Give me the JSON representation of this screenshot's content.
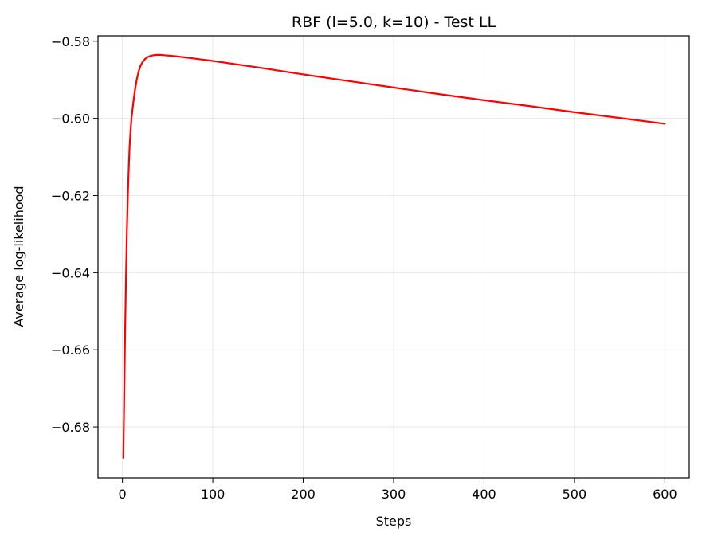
{
  "chart_data": {
    "type": "line",
    "title": "RBF (l=5.0, k=10) - Test LL",
    "xlabel": "Steps",
    "ylabel": "Average log-likelihood",
    "xlim": [
      -27,
      627
    ],
    "ylim": [
      -0.6932,
      -0.5786
    ],
    "xticks": [
      0,
      100,
      200,
      300,
      400,
      500,
      600
    ],
    "xtick_labels": [
      "0",
      "100",
      "200",
      "300",
      "400",
      "500",
      "600"
    ],
    "yticks": [
      -0.68,
      -0.66,
      -0.64,
      -0.62,
      -0.6,
      -0.58
    ],
    "ytick_labels": [
      "−0.68",
      "−0.66",
      "−0.64",
      "−0.62",
      "−0.60",
      "−0.58"
    ],
    "grid": true,
    "series": [
      {
        "color": "#ff0000",
        "x": [
          1,
          2,
          3,
          4,
          5,
          6,
          7,
          8,
          10,
          12,
          14,
          16,
          18,
          20,
          22,
          25,
          28,
          31,
          35,
          40,
          45,
          50,
          60,
          70,
          80,
          100,
          150,
          200,
          250,
          300,
          350,
          400,
          450,
          500,
          550,
          600
        ],
        "y": [
          -0.688,
          -0.672,
          -0.655,
          -0.641,
          -0.629,
          -0.62,
          -0.613,
          -0.607,
          -0.6,
          -0.596,
          -0.5925,
          -0.5898,
          -0.5878,
          -0.5864,
          -0.5855,
          -0.5846,
          -0.5841,
          -0.5838,
          -0.5836,
          -0.5835,
          -0.5836,
          -0.5837,
          -0.5839,
          -0.5842,
          -0.5845,
          -0.5851,
          -0.5868,
          -0.5886,
          -0.5903,
          -0.592,
          -0.5937,
          -0.5953,
          -0.5968,
          -0.5984,
          -0.5999,
          -0.6014
        ]
      }
    ]
  }
}
